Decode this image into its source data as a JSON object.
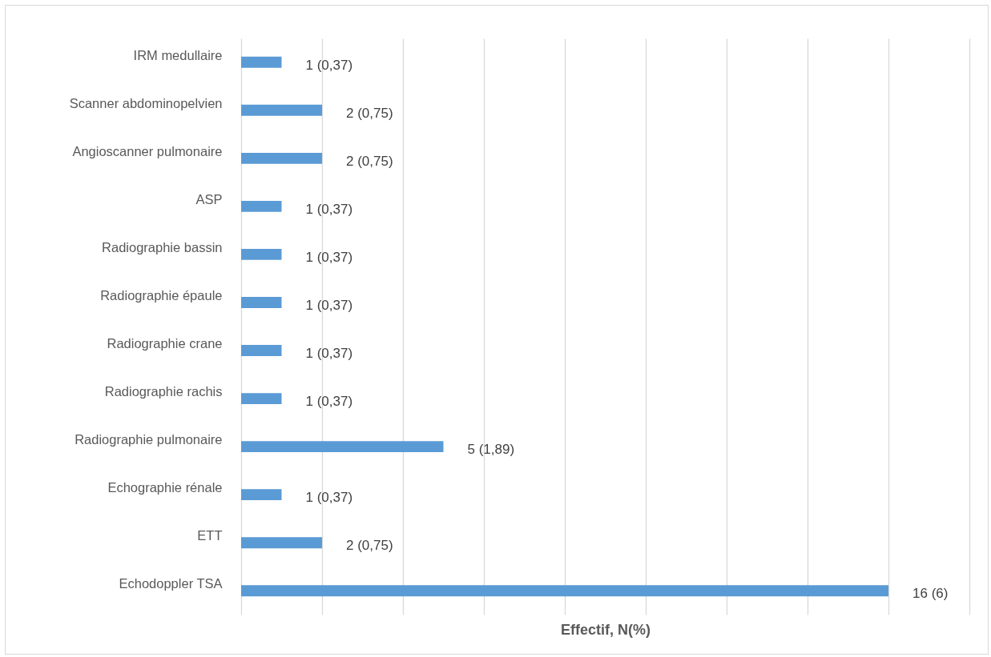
{
  "chart_data": {
    "type": "bar",
    "orientation": "horizontal",
    "xlabel": "Effectif, N(%)",
    "categories": [
      "IRM medullaire",
      "Scanner abdominopelvien",
      "Angioscanner pulmonaire",
      "ASP",
      "Radiographie bassin",
      "Radiographie épaule",
      "Radiographie crane",
      "Radiographie rachis",
      "Radiographie pulmonaire",
      "Echographie rénale",
      "ETT",
      "Echodoppler TSA"
    ],
    "values": [
      1,
      2,
      2,
      1,
      1,
      1,
      1,
      1,
      5,
      1,
      2,
      16
    ],
    "value_labels": [
      "1 (0,37)",
      "2 (0,75)",
      "2 (0,75)",
      "1 (0,37)",
      "1 (0,37)",
      "1 (0,37)",
      "1 (0,37)",
      "1 (0,37)",
      "5 (1,89)",
      "1 (0,37)",
      "2 (0,75)",
      "16 (6)"
    ],
    "color": "#5b9bd5",
    "xlim": [
      0,
      18
    ],
    "xticks": [
      {
        "value": 0,
        "label": null
      },
      {
        "value": 2,
        "label": null
      },
      {
        "value": 4,
        "label": null
      },
      {
        "value": 6,
        "label": null
      },
      {
        "value": 8,
        "label": null
      },
      {
        "value": 10,
        "label": null
      },
      {
        "value": 12,
        "label": null
      },
      {
        "value": 14,
        "label": null
      },
      {
        "value": 16,
        "label": null
      },
      {
        "value": 18,
        "label": null
      }
    ],
    "tick_labels": "y",
    "grid": "x"
  }
}
